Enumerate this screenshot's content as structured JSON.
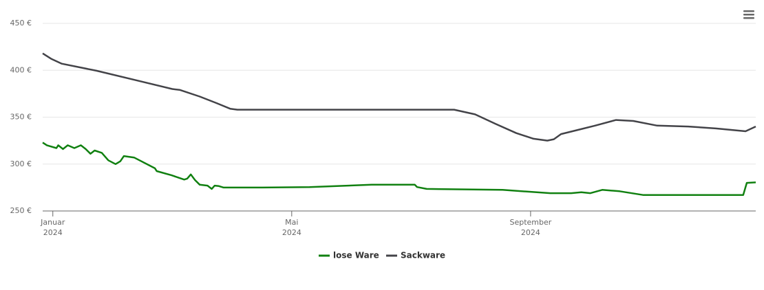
{
  "chart_data": {
    "type": "line",
    "xlim": [
      -0.17,
      11.77
    ],
    "xticks": [
      {
        "value": 0,
        "label": "Januar 2024"
      },
      {
        "value": 4,
        "label": "Mai 2024"
      },
      {
        "value": 8,
        "label": "September 2024"
      }
    ],
    "ylim": [
      250,
      450
    ],
    "yticks": [
      {
        "value": 250,
        "label": "250 €"
      },
      {
        "value": 300,
        "label": "300 €"
      },
      {
        "value": 350,
        "label": "350 €"
      },
      {
        "value": 400,
        "label": "400 €"
      },
      {
        "value": 450,
        "label": "450 €"
      }
    ],
    "grid": true,
    "legend": "bottom",
    "series": [
      {
        "name": "lose Ware",
        "color": "#108010",
        "x": [
          -0.17,
          -0.1,
          0.06,
          0.09,
          0.17,
          0.25,
          0.36,
          0.47,
          0.55,
          0.63,
          0.7,
          0.82,
          0.93,
          1.05,
          1.13,
          1.19,
          1.36,
          1.71,
          1.74,
          1.99,
          2.2,
          2.25,
          2.31,
          2.38,
          2.46,
          2.59,
          2.66,
          2.71,
          2.78,
          2.86,
          3.49,
          4.3,
          5.34,
          6.06,
          6.1,
          6.26,
          7.53,
          8.33,
          8.68,
          8.85,
          9.0,
          9.2,
          9.49,
          9.89,
          11.56,
          11.62,
          11.77
        ],
        "values": [
          323,
          320,
          317,
          320,
          316,
          320,
          317,
          320,
          316,
          311,
          314.5,
          312,
          304,
          300,
          303,
          308.5,
          307,
          295.5,
          292.5,
          288,
          283.5,
          284.5,
          289,
          283,
          278,
          277,
          273.5,
          277,
          276.5,
          275,
          275,
          275.5,
          278,
          278,
          275.5,
          273.5,
          272.5,
          269,
          269,
          270,
          269,
          272.5,
          271,
          267,
          267,
          280,
          280.5
        ]
      },
      {
        "name": "Sackware",
        "color": "#434348",
        "x": [
          -0.17,
          -0.02,
          0.15,
          0.73,
          1.42,
          2.0,
          2.13,
          2.46,
          2.74,
          2.97,
          3.09,
          3.72,
          6.72,
          7.07,
          7.41,
          7.76,
          8.05,
          8.28,
          8.39,
          8.51,
          8.8,
          9.08,
          9.43,
          9.72,
          10.12,
          10.64,
          11.1,
          11.6,
          11.77
        ],
        "values": [
          418,
          412,
          407,
          399.5,
          389,
          380,
          379,
          372,
          365,
          359,
          358,
          358,
          358,
          353,
          343,
          333,
          327,
          325,
          326.5,
          332,
          336.5,
          341,
          347,
          346,
          341,
          340,
          338,
          335,
          340
        ]
      }
    ]
  }
}
